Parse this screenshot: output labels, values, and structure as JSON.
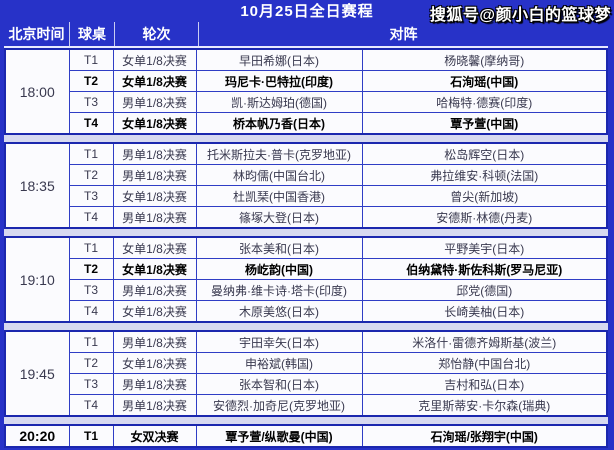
{
  "title_bar": {
    "title": "10月25日全日赛程",
    "watermark": "搜狐号@颜小白的篮球梦"
  },
  "table": {
    "headers": {
      "time": "北京时间",
      "table": "球桌",
      "round": "轮次",
      "matchup": "对阵"
    },
    "blocks": [
      {
        "time": "18:00",
        "rows": [
          {
            "table": "T1",
            "round": "女单1/8决赛",
            "p1": "早田希娜(日本)",
            "p2": "杨晓馨(摩纳哥)",
            "bold": false
          },
          {
            "table": "T2",
            "round": "女单1/8决赛",
            "p1": "玛尼卡·巴特拉(印度)",
            "p2": "石洵瑶(中国)",
            "bold": true
          },
          {
            "table": "T3",
            "round": "男单1/8决赛",
            "p1": "凯·斯达姆珀(德国)",
            "p2": "哈梅特·德赛(印度)",
            "bold": false
          },
          {
            "table": "T4",
            "round": "女单1/8决赛",
            "p1": "桥本帆乃香(日本)",
            "p2": "覃予萱(中国)",
            "bold": true
          }
        ]
      },
      {
        "time": "18:35",
        "rows": [
          {
            "table": "T1",
            "round": "男单1/8决赛",
            "p1": "托米斯拉夫·普卡(克罗地亚)",
            "p2": "松岛辉空(日本)",
            "bold": false
          },
          {
            "table": "T2",
            "round": "男单1/8决赛",
            "p1": "林昀儒(中国台北)",
            "p2": "弗拉维安·科顿(法国)",
            "bold": false
          },
          {
            "table": "T3",
            "round": "女单1/8决赛",
            "p1": "杜凯琹(中国香港)",
            "p2": "曾尖(新加坡)",
            "bold": false
          },
          {
            "table": "T4",
            "round": "男单1/8决赛",
            "p1": "篠塚大登(日本)",
            "p2": "安德斯·林德(丹麦)",
            "bold": false
          }
        ]
      },
      {
        "time": "19:10",
        "rows": [
          {
            "table": "T1",
            "round": "女单1/8决赛",
            "p1": "张本美和(日本)",
            "p2": "平野美宇(日本)",
            "bold": false
          },
          {
            "table": "T2",
            "round": "女单1/8决赛",
            "p1": "杨屹韵(中国)",
            "p2": "伯纳黛特·斯佐科斯(罗马尼亚)",
            "bold": true
          },
          {
            "table": "T3",
            "round": "男单1/8决赛",
            "p1": "曼纳弗·维卡诗·塔卡(印度)",
            "p2": "邱党(德国)",
            "bold": false
          },
          {
            "table": "T4",
            "round": "女单1/8决赛",
            "p1": "木原美悠(日本)",
            "p2": "长崎美柚(日本)",
            "bold": false
          }
        ]
      },
      {
        "time": "19:45",
        "rows": [
          {
            "table": "T1",
            "round": "男单1/8决赛",
            "p1": "宇田幸矢(日本)",
            "p2": "米洛什·雷德齐姆斯基(波兰)",
            "bold": false
          },
          {
            "table": "T2",
            "round": "女单1/8决赛",
            "p1": "申裕斌(韩国)",
            "p2": "郑怡静(中国台北)",
            "bold": false
          },
          {
            "table": "T3",
            "round": "男单1/8决赛",
            "p1": "张本智和(日本)",
            "p2": "吉村和弘(日本)",
            "bold": false
          },
          {
            "table": "T4",
            "round": "男单1/8决赛",
            "p1": "安德烈·加奇尼(克罗地亚)",
            "p2": "克里斯蒂安·卡尔森(瑞典)",
            "bold": false
          }
        ]
      },
      {
        "time": "20:20",
        "rows": [
          {
            "table": "T1",
            "round": "女双决赛",
            "p1": "覃予萱/纵歌曼(中国)",
            "p2": "石洵瑶/张翔宇(中国)",
            "bold": true
          }
        ]
      }
    ]
  },
  "colors": {
    "background_blue": "#2732c8",
    "block_border": "#1b27ae",
    "grid_line": "#2f3dc5",
    "row_background": "#fbfbfe",
    "separator_lavender": "#d7d9f0",
    "regular_text": "#39394f",
    "bold_text": "#000000",
    "header_text": "#ffffff"
  }
}
